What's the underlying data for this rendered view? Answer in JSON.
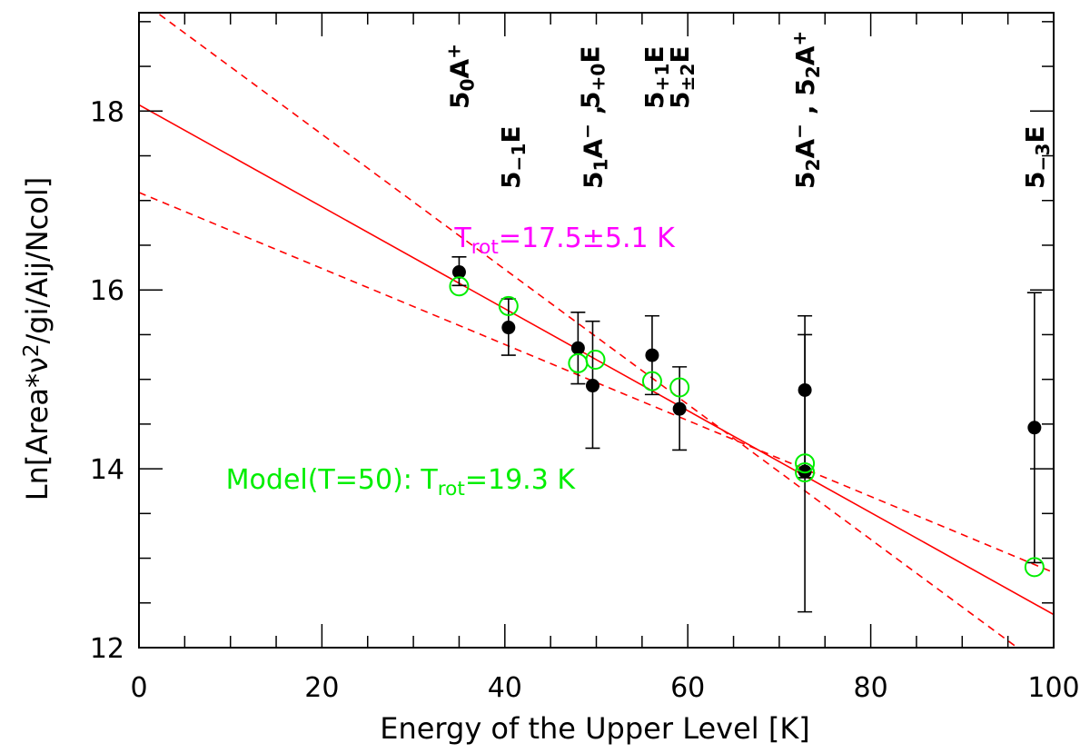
{
  "chart_data": {
    "type": "scatter",
    "xlabel": "Energy of the Upper Level [K]",
    "ylabel": "Ln[Area*ν²/gi/Aij/Ncol]",
    "xlim": [
      0,
      100
    ],
    "ylim": [
      12,
      19.1
    ],
    "x_ticks": [
      0,
      20,
      40,
      60,
      80,
      100
    ],
    "y_ticks": [
      12,
      14,
      16,
      18
    ],
    "grid": false,
    "colors": {
      "fit": "#ff0000",
      "model": "#00ee00",
      "observed": "#000000",
      "trot_label": "#ff00ff"
    },
    "series": [
      {
        "name": "",
        "marker": "filled-circle",
        "points": [
          {
            "x": 35.0,
            "y": 16.2,
            "ylo": 16.05,
            "yhi": 16.37
          },
          {
            "x": 40.4,
            "y": 15.58,
            "ylo": 15.27,
            "yhi": 15.9
          },
          {
            "x": 48.0,
            "y": 15.35,
            "ylo": 14.95,
            "yhi": 15.75
          },
          {
            "x": 49.6,
            "y": 14.93,
            "ylo": 14.23,
            "yhi": 15.65
          },
          {
            "x": 56.1,
            "y": 15.27,
            "ylo": 14.83,
            "yhi": 15.71
          },
          {
            "x": 59.1,
            "y": 14.67,
            "ylo": 14.21,
            "yhi": 15.14
          },
          {
            "x": 72.8,
            "y": 14.88,
            "ylo": 13.9,
            "yhi": 15.71
          },
          {
            "x": 72.8,
            "y": 13.97,
            "ylo": 12.4,
            "yhi": 15.5
          },
          {
            "x": 97.9,
            "y": 14.46,
            "ylo": 12.95,
            "yhi": 15.97
          }
        ]
      },
      {
        "name": "",
        "marker": "open-circle",
        "points": [
          {
            "x": 35.0,
            "y": 16.04
          },
          {
            "x": 40.4,
            "y": 15.82
          },
          {
            "x": 48.0,
            "y": 15.18
          },
          {
            "x": 49.9,
            "y": 15.22
          },
          {
            "x": 56.1,
            "y": 14.98
          },
          {
            "x": 59.1,
            "y": 14.91
          },
          {
            "x": 72.8,
            "y": 14.06
          },
          {
            "x": 72.8,
            "y": 13.96
          },
          {
            "x": 97.9,
            "y": 12.9
          }
        ]
      }
    ],
    "fits": [
      {
        "style": "solid",
        "x": [
          0,
          100
        ],
        "y": [
          18.07,
          12.37
        ]
      },
      {
        "style": "dashed",
        "x": [
          0,
          100
        ],
        "y": [
          19.25,
          11.7
        ]
      },
      {
        "style": "dashed",
        "x": [
          0,
          100
        ],
        "y": [
          17.09,
          12.84
        ]
      }
    ],
    "annotations": {
      "trot": {
        "base": "T",
        "sub": "rot",
        "rest": "=17.5±5.1 K",
        "anchor": {
          "x": 34.5,
          "y": 16.48
        }
      },
      "model": {
        "lead": "Model(T=50): T",
        "sub": "rot",
        "rest": "=19.3 K",
        "anchor": {
          "x": 9.5,
          "y": 13.78
        }
      }
    },
    "transition_labels": [
      {
        "x": 35.0,
        "row": "upper",
        "parts": [
          [
            "5",
            ""
          ],
          [
            "0",
            "sub"
          ],
          [
            "A",
            ""
          ],
          [
            "+",
            "sup"
          ]
        ]
      },
      {
        "x": 40.6,
        "row": "lower",
        "parts": [
          [
            "5",
            ""
          ],
          [
            "−1",
            "sub"
          ],
          [
            "E",
            ""
          ]
        ]
      },
      {
        "x": 49.3,
        "row": "upper",
        "parts": [
          [
            "5",
            ""
          ],
          [
            "+0",
            "sub"
          ],
          [
            "E",
            ""
          ]
        ]
      },
      {
        "x": 49.6,
        "row": "lower",
        "parts": [
          [
            "5",
            ""
          ],
          [
            "1",
            "sub"
          ],
          [
            "A",
            ""
          ],
          [
            "−",
            "sup"
          ],
          [
            " ,",
            ""
          ]
        ]
      },
      {
        "x": 56.3,
        "row": "upper",
        "parts": [
          [
            "5",
            ""
          ],
          [
            "+1",
            "sub"
          ],
          [
            "E",
            ""
          ]
        ]
      },
      {
        "x": 59.1,
        "row": "upper",
        "parts": [
          [
            "5",
            ""
          ],
          [
            "±2",
            "sub"
          ],
          [
            "E",
            ""
          ]
        ]
      },
      {
        "x": 72.8,
        "row": "lower",
        "parts": [
          [
            "5",
            ""
          ],
          [
            "2",
            "sub"
          ],
          [
            "A",
            ""
          ],
          [
            "−",
            "sup"
          ],
          [
            " ,  5",
            ""
          ],
          [
            "2",
            "sub"
          ],
          [
            "A",
            ""
          ],
          [
            "+",
            "sup"
          ]
        ]
      },
      {
        "x": 97.9,
        "row": "lower",
        "parts": [
          [
            "5",
            ""
          ],
          [
            "−3",
            "sub"
          ],
          [
            "E",
            ""
          ]
        ]
      }
    ]
  }
}
